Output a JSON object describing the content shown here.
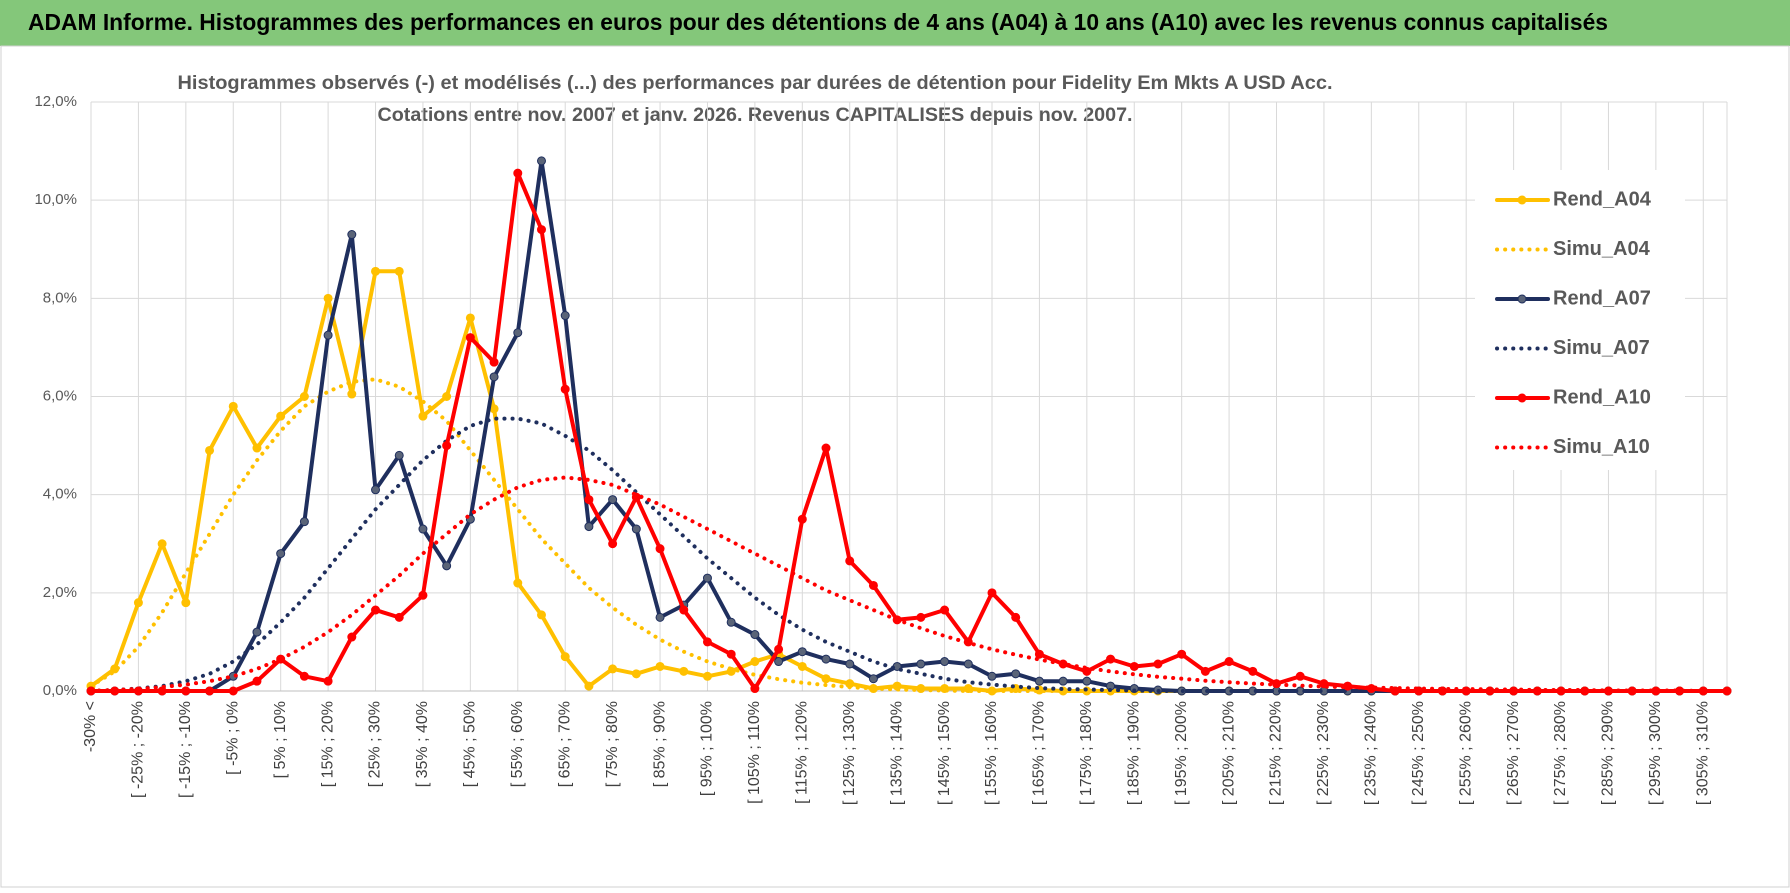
{
  "chart_data": {
    "type": "line",
    "title": "ADAM Informe. Histogrammes des performances en euros pour des détentions de 4 ans (A04) à 10 ans (A10) avec les revenus connus capitalisés",
    "subtitle": [
      "Histogrammes observés (-) et modélisés (...) des performances par durées de détention pour Fidelity Em Mkts A USD Acc.",
      "Cotations entre nov. 2007 et janv. 2026. Revenus CAPITALISES depuis nov. 2007."
    ],
    "categories": [
      "-30% <",
      null,
      "[ -25% ; -20%",
      null,
      "[ -15% ; -10%",
      null,
      "[ -5% ; 0%",
      null,
      "[ 5% ; 10%",
      null,
      "[ 15% ; 20%",
      null,
      "[ 25% ; 30%",
      null,
      "[ 35% ; 40%",
      null,
      "[ 45% ; 50%",
      null,
      "[ 55% ; 60%",
      null,
      "[ 65% ; 70%",
      null,
      "[ 75% ; 80%",
      null,
      "[ 85% ; 90%",
      null,
      "[ 95% ; 100%",
      null,
      "[ 105% ; 110%",
      null,
      "[ 115% ; 120%",
      null,
      "[ 125% ; 130%",
      null,
      "[ 135% ; 140%",
      null,
      "[ 145% ; 150%",
      null,
      "[ 155% ; 160%",
      null,
      "[ 165% ; 170%",
      null,
      "[ 175% ; 180%",
      null,
      "[ 185% ; 190%",
      null,
      "[ 195% ; 200%",
      null,
      "[ 205% ; 210%",
      null,
      "[ 215% ; 220%",
      null,
      "[ 225% ; 230%",
      null,
      "[ 235% ; 240%",
      null,
      "[ 245% ; 250%",
      null,
      "[ 255% ; 260%",
      null,
      "[ 265% ; 270%",
      null,
      "[ 275% ; 280%",
      null,
      "[ 285% ; 290%",
      null,
      "[ 295% ; 300%",
      null,
      "[ 305% ; 310%",
      null
    ],
    "series": [
      {
        "name": "Rend_A04",
        "color": "#ffc000",
        "line_style": "solid",
        "markers": true,
        "values": [
          0.1,
          0.45,
          1.8,
          3.0,
          1.8,
          4.9,
          5.8,
          4.95,
          5.6,
          6.0,
          8.0,
          6.05,
          8.55,
          8.55,
          5.6,
          6.0,
          7.6,
          5.75,
          2.2,
          1.55,
          0.7,
          0.1,
          0.45,
          0.35,
          0.5,
          0.4,
          0.3,
          0.4,
          0.6,
          0.75,
          0.5,
          0.25,
          0.15,
          0.05,
          0.1,
          0.05,
          0.05,
          0.05,
          0,
          0.05,
          0.02,
          0,
          0,
          0,
          0,
          0,
          0,
          0,
          0,
          0,
          0,
          0,
          0,
          0,
          0,
          0,
          0,
          0,
          0,
          0,
          0,
          0,
          0,
          0,
          0,
          0,
          0,
          0,
          0,
          0
        ]
      },
      {
        "name": "Simu_A04",
        "color": "#ffc000",
        "line_style": "dotted",
        "markers": false,
        "values": [
          0.1,
          0.4,
          0.9,
          1.6,
          2.4,
          3.2,
          4.0,
          4.7,
          5.3,
          5.8,
          6.1,
          6.3,
          6.35,
          6.2,
          5.9,
          5.5,
          4.9,
          4.3,
          3.7,
          3.1,
          2.6,
          2.1,
          1.7,
          1.35,
          1.05,
          0.8,
          0.6,
          0.45,
          0.33,
          0.24,
          0.17,
          0.12,
          0.08,
          0.05,
          0.03,
          0.02,
          0.01,
          0,
          0,
          0,
          0,
          0,
          0,
          0,
          0,
          0,
          0,
          0,
          0,
          0,
          0,
          0,
          0,
          0,
          0,
          0,
          0,
          0,
          0,
          0,
          0,
          0,
          0,
          0,
          0,
          0,
          0,
          0,
          0,
          0
        ]
      },
      {
        "name": "Rend_A07",
        "color": "#1f2f5e",
        "line_style": "solid",
        "markers": true,
        "values": [
          0,
          0,
          0,
          0,
          0,
          0,
          0.3,
          1.2,
          2.8,
          3.45,
          7.25,
          9.3,
          4.1,
          4.8,
          3.3,
          2.55,
          3.5,
          6.4,
          7.3,
          10.8,
          7.65,
          3.35,
          3.9,
          3.3,
          1.5,
          1.75,
          2.3,
          1.4,
          1.15,
          0.6,
          0.8,
          0.65,
          0.55,
          0.25,
          0.5,
          0.55,
          0.6,
          0.55,
          0.3,
          0.35,
          0.2,
          0.2,
          0.2,
          0.1,
          0.05,
          0.02,
          0,
          0,
          0,
          0,
          0,
          0,
          0,
          0,
          0,
          0,
          0,
          0,
          0,
          0,
          0,
          0,
          0,
          0,
          0,
          0,
          0,
          0,
          0,
          0
        ]
      },
      {
        "name": "Simu_A07",
        "color": "#1f2f5e",
        "line_style": "dotted",
        "markers": false,
        "values": [
          0,
          0.02,
          0.05,
          0.1,
          0.2,
          0.35,
          0.6,
          0.95,
          1.4,
          1.9,
          2.5,
          3.1,
          3.7,
          4.2,
          4.7,
          5.1,
          5.4,
          5.55,
          5.55,
          5.45,
          5.2,
          4.9,
          4.5,
          4.05,
          3.6,
          3.15,
          2.7,
          2.3,
          1.9,
          1.55,
          1.25,
          1.0,
          0.8,
          0.6,
          0.45,
          0.35,
          0.25,
          0.18,
          0.13,
          0.09,
          0.06,
          0.04,
          0.03,
          0.02,
          0.01,
          0,
          0,
          0,
          0,
          0,
          0,
          0,
          0,
          0,
          0,
          0,
          0,
          0,
          0,
          0,
          0,
          0,
          0,
          0,
          0,
          0,
          0,
          0,
          0,
          0
        ]
      },
      {
        "name": "Rend_A10",
        "color": "#ff0000",
        "line_style": "solid",
        "markers": true,
        "values": [
          0,
          0,
          0,
          0,
          0,
          0,
          0,
          0.2,
          0.65,
          0.3,
          0.2,
          1.1,
          1.65,
          1.5,
          1.95,
          5.0,
          7.2,
          6.7,
          10.55,
          9.4,
          6.15,
          3.9,
          3.0,
          3.95,
          2.9,
          1.65,
          1.0,
          0.75,
          0.05,
          0.85,
          3.5,
          4.95,
          2.65,
          2.15,
          1.45,
          1.5,
          1.65,
          1.0,
          2.0,
          1.5,
          0.75,
          0.55,
          0.4,
          0.65,
          0.5,
          0.55,
          0.75,
          0.4,
          0.6,
          0.4,
          0.15,
          0.3,
          0.15,
          0.1,
          0.05,
          0,
          0,
          0,
          0,
          0,
          0,
          0,
          0,
          0,
          0,
          0,
          0,
          0,
          0,
          0
        ]
      },
      {
        "name": "Simu_A10",
        "color": "#ff0000",
        "line_style": "dotted",
        "markers": false,
        "values": [
          0,
          0.02,
          0.04,
          0.08,
          0.13,
          0.2,
          0.3,
          0.45,
          0.65,
          0.9,
          1.2,
          1.55,
          1.95,
          2.35,
          2.8,
          3.2,
          3.6,
          3.9,
          4.15,
          4.3,
          4.35,
          4.3,
          4.2,
          4.0,
          3.8,
          3.55,
          3.3,
          3.05,
          2.8,
          2.55,
          2.3,
          2.05,
          1.85,
          1.65,
          1.45,
          1.28,
          1.12,
          0.98,
          0.85,
          0.74,
          0.64,
          0.55,
          0.47,
          0.4,
          0.34,
          0.29,
          0.25,
          0.21,
          0.18,
          0.15,
          0.13,
          0.11,
          0.09,
          0.08,
          0.07,
          0.06,
          0.05,
          0.04,
          0.04,
          0.03,
          0.03,
          0.02,
          0.02,
          0.02,
          0.01,
          0.01,
          0.01,
          0.01,
          0,
          0
        ]
      }
    ],
    "ylim": [
      0,
      12
    ],
    "yticks": [
      {
        "value": 0,
        "label": "0,0%"
      },
      {
        "value": 2,
        "label": "2,0%"
      },
      {
        "value": 4,
        "label": "4,0%"
      },
      {
        "value": 6,
        "label": "6,0%"
      },
      {
        "value": 8,
        "label": "8,0%"
      },
      {
        "value": 10,
        "label": "10,0%"
      },
      {
        "value": 12,
        "label": "12,0%"
      }
    ],
    "grid": true,
    "legend": "right"
  }
}
